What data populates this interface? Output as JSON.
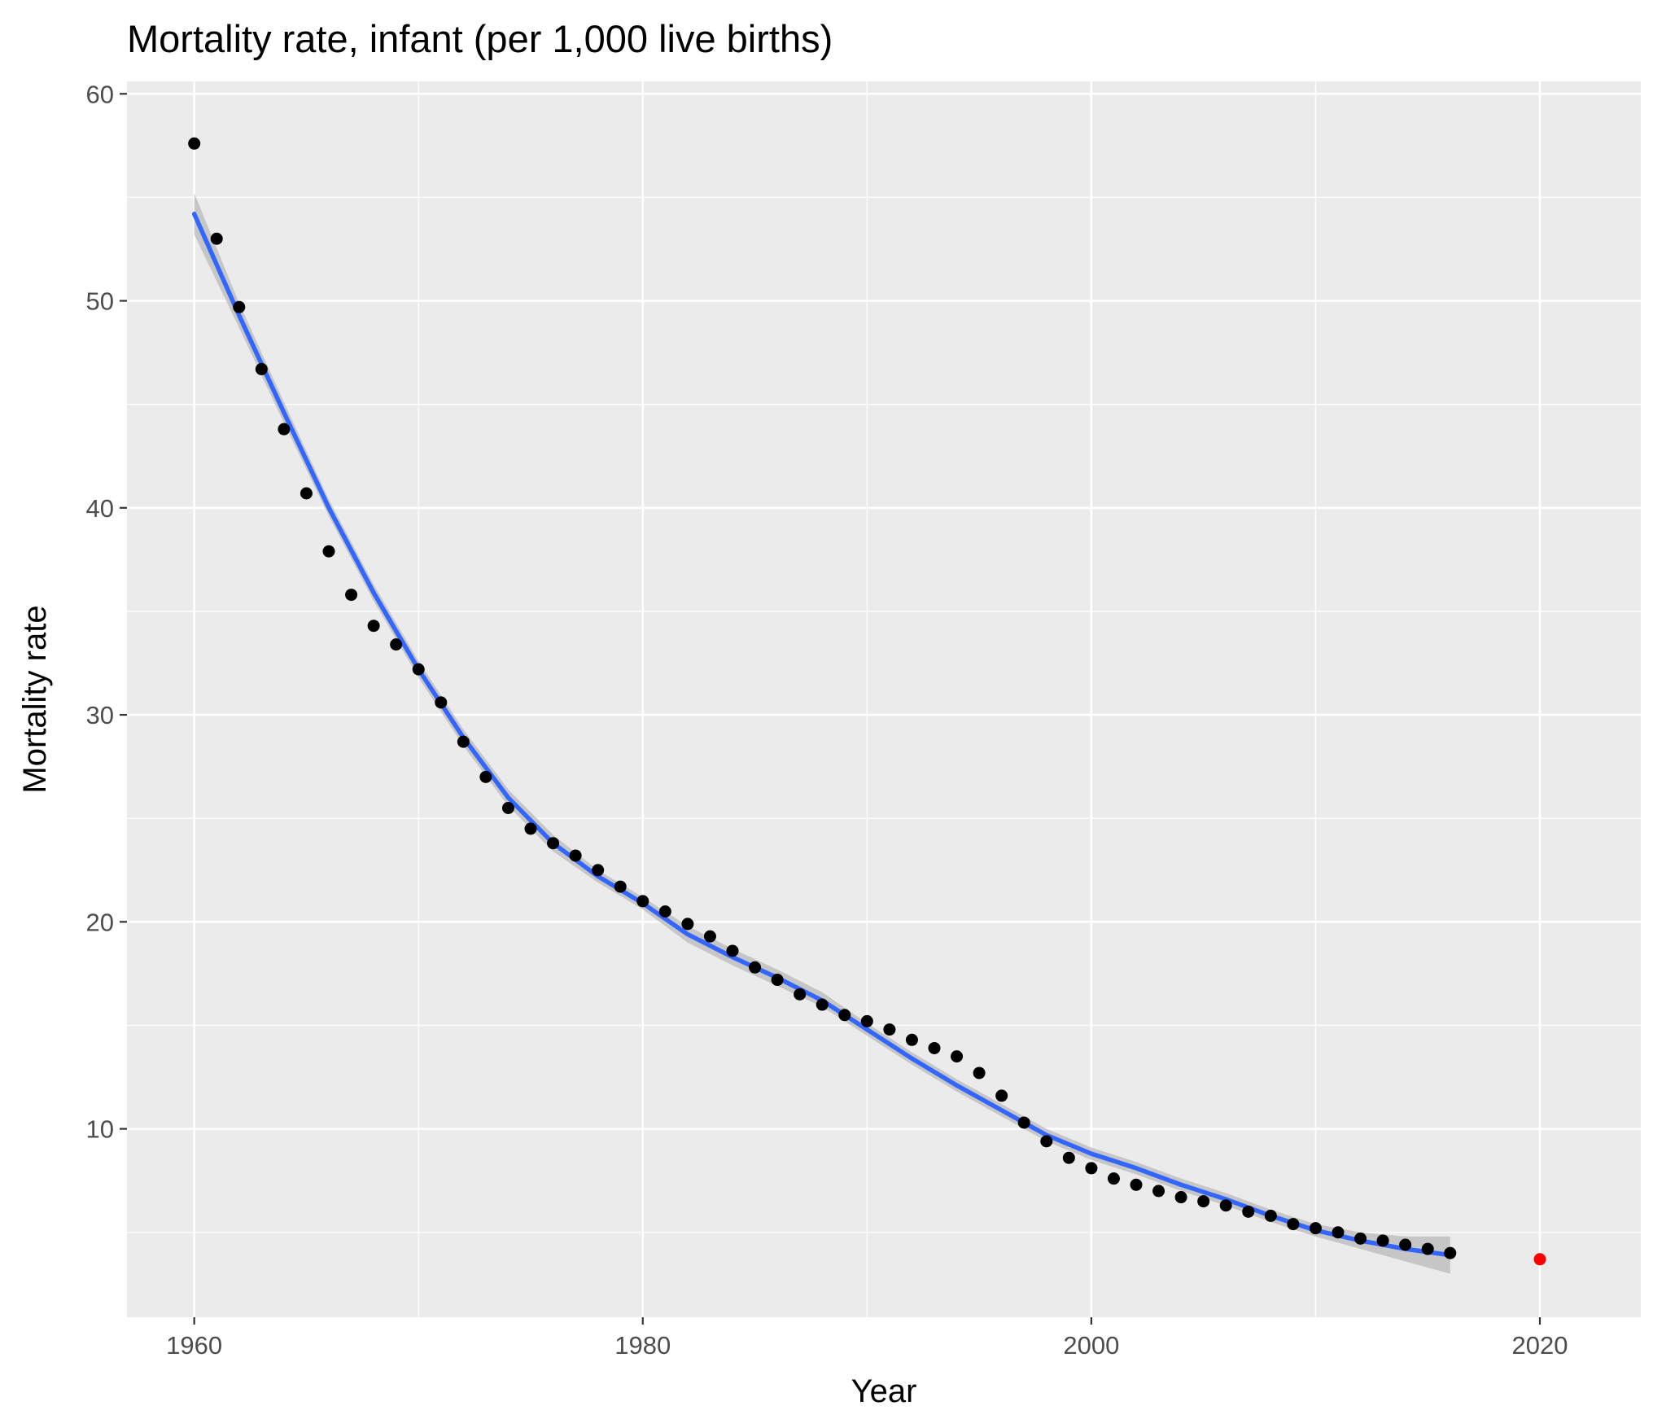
{
  "chart_data": {
    "type": "scatter",
    "title": "Mortality rate, infant (per 1,000 live births)",
    "xlabel": "Year",
    "ylabel": "Mortality rate",
    "xlim": [
      1957,
      2024.5
    ],
    "ylim": [
      0.9,
      60.6
    ],
    "x_ticks": [
      1960,
      1980,
      2000,
      2020
    ],
    "x_tick_labels": [
      "1960",
      "1980",
      "2000",
      "2020"
    ],
    "y_ticks": [
      10,
      20,
      30,
      40,
      50,
      60
    ],
    "y_tick_labels": [
      "10",
      "20",
      "30",
      "40",
      "50",
      "60"
    ],
    "grid": true,
    "colors": {
      "panel": "#ebebeb",
      "grid": "#ffffff",
      "points": "#000000",
      "smooth_line": "#3366ff",
      "confidence_band": "#c0c0c0",
      "highlight_point": "#ff0000"
    },
    "series": [
      {
        "x": [
          1960,
          1961,
          1962,
          1963,
          1964,
          1965,
          1966,
          1967,
          1968,
          1969,
          1970,
          1971,
          1972,
          1973,
          1974,
          1975,
          1976,
          1977,
          1978,
          1979,
          1980,
          1981,
          1982,
          1983,
          1984,
          1985,
          1986,
          1987,
          1988,
          1989,
          1990,
          1991,
          1992,
          1993,
          1994,
          1995,
          1996,
          1997,
          1998,
          1999,
          2000,
          2001,
          2002,
          2003,
          2004,
          2005,
          2006,
          2007,
          2008,
          2009,
          2010,
          2011,
          2012,
          2013,
          2014,
          2015,
          2016
        ],
        "y": [
          57.6,
          53.0,
          49.7,
          46.7,
          43.8,
          40.7,
          37.9,
          35.8,
          34.3,
          33.4,
          32.2,
          30.6,
          28.7,
          27.0,
          25.5,
          24.5,
          23.8,
          23.2,
          22.5,
          21.7,
          21.0,
          20.5,
          19.9,
          19.3,
          18.6,
          17.8,
          17.2,
          16.5,
          16.0,
          15.5,
          15.2,
          14.8,
          14.3,
          13.9,
          13.5,
          12.7,
          11.6,
          10.3,
          9.4,
          8.6,
          8.1,
          7.6,
          7.3,
          7.0,
          6.7,
          6.5,
          6.3,
          6.0,
          5.8,
          5.4,
          5.2,
          5.0,
          4.7,
          4.6,
          4.4,
          4.2,
          4.0
        ]
      },
      {
        "type": "line",
        "x": [
          1960,
          1962,
          1964,
          1966,
          1968,
          1970,
          1972,
          1974,
          1976,
          1978,
          1980,
          1982,
          1984,
          1986,
          1988,
          1990,
          1992,
          1994,
          1996,
          1998,
          2000,
          2002,
          2004,
          2006,
          2008,
          2010,
          2012,
          2014,
          2016
        ],
        "y": [
          54.2,
          49.3,
          44.6,
          40.0,
          35.9,
          32.2,
          28.9,
          26.0,
          23.8,
          22.2,
          20.9,
          19.4,
          18.3,
          17.3,
          16.2,
          14.8,
          13.4,
          12.1,
          10.9,
          9.7,
          8.8,
          8.1,
          7.3,
          6.6,
          5.8,
          5.1,
          4.6,
          4.2,
          3.9
        ],
        "band_low": [
          53.2,
          48.7,
          44.1,
          39.6,
          35.5,
          31.8,
          28.5,
          25.6,
          23.4,
          21.9,
          20.6,
          19.0,
          17.9,
          16.9,
          15.9,
          14.5,
          13.1,
          11.8,
          10.6,
          9.4,
          8.5,
          7.8,
          7.0,
          6.3,
          5.5,
          4.8,
          4.2,
          3.6,
          3.0
        ],
        "band_high": [
          55.2,
          49.9,
          45.1,
          40.4,
          36.3,
          32.6,
          29.3,
          26.4,
          24.2,
          22.5,
          21.2,
          19.8,
          18.7,
          17.7,
          16.6,
          15.1,
          13.7,
          12.4,
          11.2,
          10.0,
          9.1,
          8.4,
          7.6,
          6.9,
          6.1,
          5.4,
          5.0,
          4.8,
          4.8
        ]
      },
      {
        "x": [
          2020
        ],
        "y": [
          3.7
        ]
      }
    ]
  }
}
